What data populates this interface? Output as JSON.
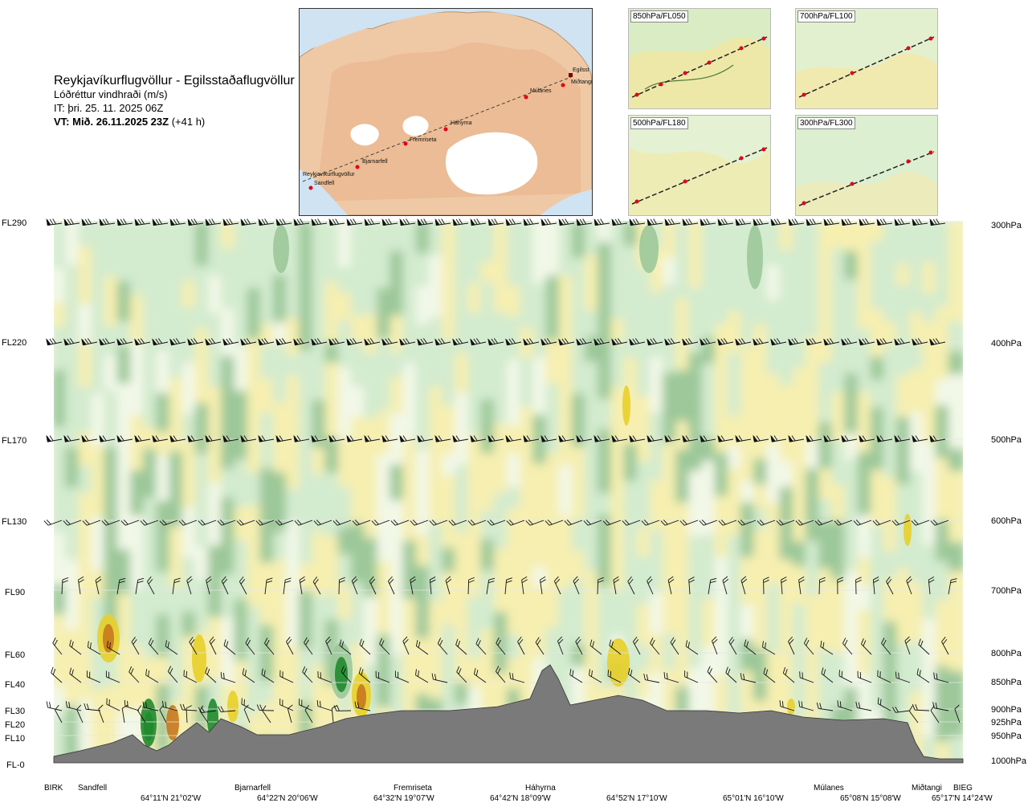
{
  "header": {
    "route": "Reykjavíkurflugvöllur - Egilsstaðaflugvöllur",
    "variable": "Lóðréttur vindhraði (m/s)",
    "issue_time": "IT: þri. 25. 11. 2025 06Z",
    "valid_time": "VT: Mið. 26.11.2025 23Z",
    "lead": "(+41 h)"
  },
  "map": {
    "waypoints": [
      {
        "name": "Reykjavíkurflugvöllur"
      },
      {
        "name": "Sandfell"
      },
      {
        "name": "Bjarnarfell"
      },
      {
        "name": "Fremriseta"
      },
      {
        "name": "Háhyrna"
      },
      {
        "name": "Múlanes"
      },
      {
        "name": "Miðtangi"
      },
      {
        "name": "Egilsst"
      }
    ]
  },
  "thumbnails": [
    {
      "label": "850hPa/FL050"
    },
    {
      "label": "700hPa/FL100"
    },
    {
      "label": "500hPa/FL180"
    },
    {
      "label": "300hPa/FL300"
    }
  ],
  "chart_data": {
    "type": "heatmap",
    "title": "Lóðréttur vindhraði (m/s)",
    "left_axis": [
      "FL290",
      "FL220",
      "FL170",
      "FL130",
      "FL90",
      "FL60",
      "FL40",
      "FL30",
      "FL20",
      "FL10",
      "FL-0"
    ],
    "right_axis": [
      "300hPa",
      "400hPa",
      "500hPa",
      "600hPa",
      "700hPa",
      "800hPa",
      "850hPa",
      "900hPa",
      "925hPa",
      "950hPa",
      "1000hPa"
    ],
    "pressure_levels_hpa": [
      300,
      400,
      500,
      600,
      700,
      800,
      850,
      900,
      925,
      950,
      1000
    ],
    "barb_levels_hpa": [
      300,
      400,
      500,
      600,
      700,
      800,
      850,
      900,
      925,
      950
    ],
    "waypoints": [
      "BIRK",
      "Sandfell",
      "Bjarnarfell",
      "Fremriseta",
      "Háhyrna",
      "Múlanes",
      "Miðtangi",
      "BIEG"
    ],
    "coordinates": [
      "64°11'N 21°02'W",
      "64°22'N 20°06'W",
      "64°32'N 19°07'W",
      "64°42'N 18°09'W",
      "64°52'N 17°10'W",
      "65°01'N 16°10'W",
      "65°08'N 15°08'W",
      "65°17'N 14°24'W"
    ],
    "colors": {
      "strong_down": "#1f8a2e",
      "mod_down": "#9cc89a",
      "weak_down": "#d3ebcf",
      "neutral": "#f2f8e8",
      "weak_up": "#f6efb0",
      "mod_up": "#e8cf2a",
      "strong_up": "#c8781e",
      "terrain": "#7a7a7a"
    }
  }
}
